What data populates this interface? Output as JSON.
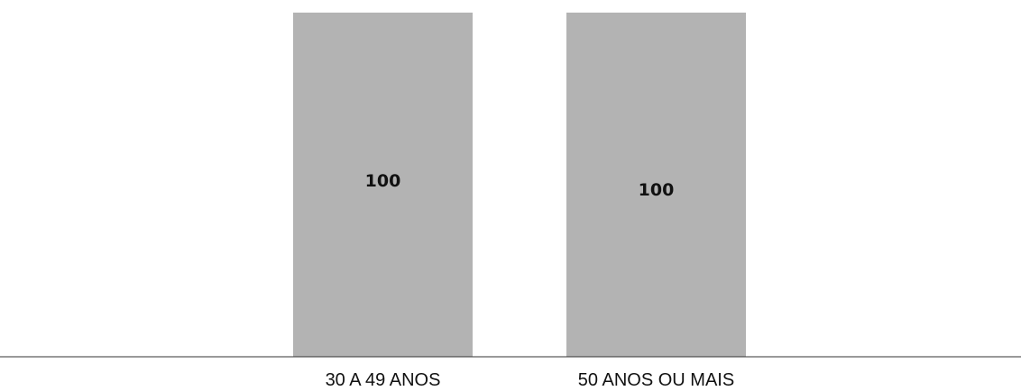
{
  "chart_data": {
    "type": "bar",
    "categories": [
      "30 A 49 ANOS",
      "50 ANOS OU MAIS"
    ],
    "values": [
      100,
      100
    ],
    "data_labels": [
      "100",
      "100"
    ],
    "ylim": [
      0,
      100
    ],
    "title": "",
    "xlabel": "",
    "ylabel": "",
    "grid": false,
    "colors": {
      "bar": "#b3b3b3",
      "axis": "#333333",
      "text": "#111111"
    }
  }
}
